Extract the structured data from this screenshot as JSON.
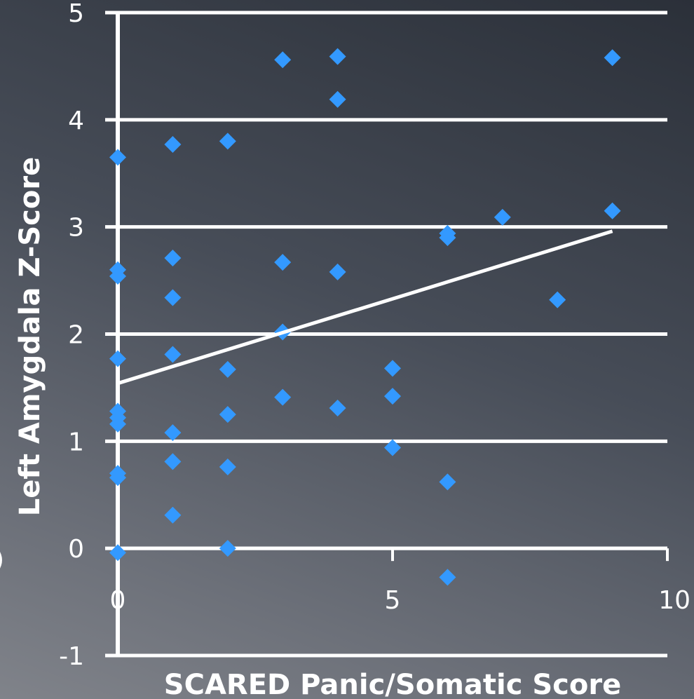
{
  "chart_data": {
    "type": "scatter",
    "title": "",
    "xlabel": "SCARED Panic/Somatic Score",
    "ylabel": "Left Amygdala Z-Score",
    "xlim": [
      0,
      10
    ],
    "ylim": [
      -1,
      5
    ],
    "x_ticks": [
      "0",
      "5",
      "10"
    ],
    "y_ticks": [
      "-1",
      "0",
      "1",
      "2",
      "3",
      "4",
      "5"
    ],
    "grid": "horizontal",
    "marker": "diamond",
    "marker_color": "#3399ff",
    "line_color": "#ffffff",
    "points": [
      {
        "x": 0,
        "y": 3.65
      },
      {
        "x": 0,
        "y": 2.6
      },
      {
        "x": 0,
        "y": 2.54
      },
      {
        "x": 0,
        "y": 1.77
      },
      {
        "x": 0,
        "y": 1.28
      },
      {
        "x": 0,
        "y": 1.22
      },
      {
        "x": 0,
        "y": 1.16
      },
      {
        "x": 0,
        "y": 0.7
      },
      {
        "x": 0,
        "y": 0.66
      },
      {
        "x": 0,
        "y": -0.04
      },
      {
        "x": 1,
        "y": 3.77
      },
      {
        "x": 1,
        "y": 2.71
      },
      {
        "x": 1,
        "y": 2.34
      },
      {
        "x": 1,
        "y": 1.81
      },
      {
        "x": 1,
        "y": 1.08
      },
      {
        "x": 1,
        "y": 0.81
      },
      {
        "x": 1,
        "y": 0.31
      },
      {
        "x": 2,
        "y": 3.8
      },
      {
        "x": 2,
        "y": 1.67
      },
      {
        "x": 2,
        "y": 1.25
      },
      {
        "x": 2,
        "y": 0.76
      },
      {
        "x": 2,
        "y": 0.0
      },
      {
        "x": 3,
        "y": 4.56
      },
      {
        "x": 3,
        "y": 2.67
      },
      {
        "x": 3,
        "y": 2.02
      },
      {
        "x": 3,
        "y": 1.41
      },
      {
        "x": 4,
        "y": 4.59
      },
      {
        "x": 4,
        "y": 4.19
      },
      {
        "x": 4,
        "y": 2.58
      },
      {
        "x": 4,
        "y": 1.31
      },
      {
        "x": 5,
        "y": 1.68
      },
      {
        "x": 5,
        "y": 1.42
      },
      {
        "x": 5,
        "y": 0.94
      },
      {
        "x": 6,
        "y": 2.94
      },
      {
        "x": 6,
        "y": 2.9
      },
      {
        "x": 6,
        "y": 0.62
      },
      {
        "x": 6,
        "y": -0.27
      },
      {
        "x": 7,
        "y": 3.09
      },
      {
        "x": 8,
        "y": 2.32
      },
      {
        "x": 9,
        "y": 4.58
      },
      {
        "x": 9,
        "y": 3.15
      }
    ],
    "trendline": {
      "x1": 0,
      "y1": 1.54,
      "x2": 9,
      "y2": 2.96
    }
  },
  "left_edge_mark": ")"
}
